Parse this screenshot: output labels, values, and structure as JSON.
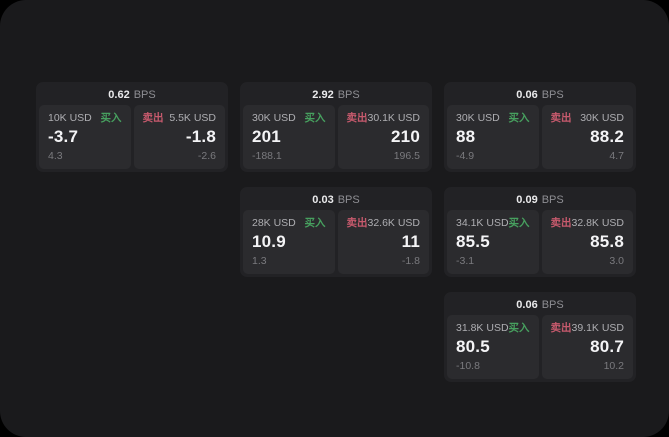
{
  "labels": {
    "bps_unit": "BPS",
    "buy": "买入",
    "sell": "卖出"
  },
  "colors": {
    "app_background": "#1a1a1c",
    "card_background": "#222225",
    "panel_background": "#2b2b2e",
    "buy_green": "#47a05f",
    "sell_red": "#c75a6d"
  },
  "cards": [
    {
      "bps": "0.62",
      "buy": {
        "notional": "10K USD",
        "price": "-3.7",
        "sub": "4.3"
      },
      "sell": {
        "notional": "5.5K USD",
        "price": "-1.8",
        "sub": "-2.6"
      }
    },
    {
      "bps": "2.92",
      "buy": {
        "notional": "30K USD",
        "price": "201",
        "sub": "-188.1"
      },
      "sell": {
        "notional": "30.1K USD",
        "price": "210",
        "sub": "196.5"
      }
    },
    {
      "bps": "0.06",
      "buy": {
        "notional": "30K USD",
        "price": "88",
        "sub": "-4.9"
      },
      "sell": {
        "notional": "30K USD",
        "price": "88.2",
        "sub": "4.7"
      }
    },
    {
      "bps": "0.03",
      "buy": {
        "notional": "28K USD",
        "price": "10.9",
        "sub": "1.3"
      },
      "sell": {
        "notional": "32.6K USD",
        "price": "11",
        "sub": "-1.8"
      }
    },
    {
      "bps": "0.09",
      "buy": {
        "notional": "34.1K USD",
        "price": "85.5",
        "sub": "-3.1"
      },
      "sell": {
        "notional": "32.8K USD",
        "price": "85.8",
        "sub": "3.0"
      }
    },
    {
      "bps": "0.06",
      "buy": {
        "notional": "31.8K USD",
        "price": "80.5",
        "sub": "-10.8"
      },
      "sell": {
        "notional": "39.1K USD",
        "price": "80.7",
        "sub": "10.2"
      }
    }
  ]
}
